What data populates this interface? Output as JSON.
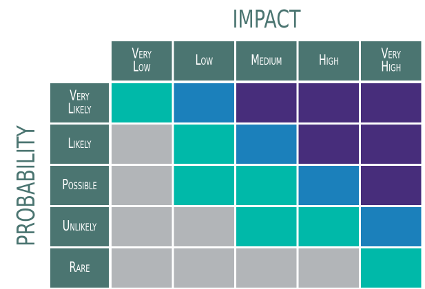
{
  "title": "IMPACT",
  "row_axis_label": "PROBABILITY",
  "columns": [
    [
      "Very",
      "Low"
    ],
    [
      "Low"
    ],
    [
      "Medium"
    ],
    [
      "High"
    ],
    [
      "Very",
      "High"
    ]
  ],
  "rows": [
    [
      "Very",
      "Likely"
    ],
    [
      "Likely"
    ],
    [
      "Possible"
    ],
    [
      "Unlikely"
    ],
    [
      "Rare"
    ]
  ],
  "header_color": "#4b7571",
  "title_color": "#4b7571",
  "cell_colors": [
    [
      "#00b9a9",
      "#1b80bb",
      "#472d7b",
      "#472d7b",
      "#472d7b"
    ],
    [
      "#b2b5b8",
      "#00b9a9",
      "#1b80bb",
      "#472d7b",
      "#472d7b"
    ],
    [
      "#b2b5b8",
      "#00b9a9",
      "#00b9a9",
      "#1b80bb",
      "#472d7b"
    ],
    [
      "#b2b5b8",
      "#b2b5b8",
      "#00b9a9",
      "#00b9a9",
      "#1b80bb"
    ],
    [
      "#b2b5b8",
      "#b2b5b8",
      "#b2b5b8",
      "#b2b5b8",
      "#00b9a9"
    ]
  ]
}
